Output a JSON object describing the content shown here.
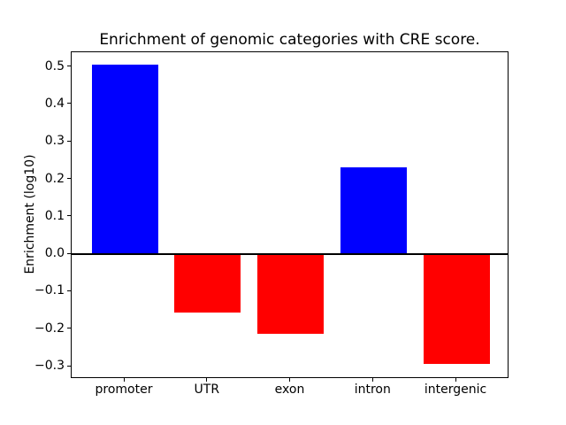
{
  "chart_data": {
    "type": "bar",
    "title": "Enrichment of genomic categories with CRE score.",
    "xlabel": "",
    "ylabel": "Enrichment (log10)",
    "categories": [
      "promoter",
      "UTR",
      "exon",
      "intron",
      "intergenic"
    ],
    "values": [
      0.505,
      -0.155,
      -0.213,
      0.232,
      -0.292
    ],
    "bar_colors": [
      "#0000ff",
      "#ff0000",
      "#ff0000",
      "#0000ff",
      "#ff0000"
    ],
    "positive_color": "#0000ff",
    "negative_color": "#ff0000",
    "yticks": [
      0.5,
      0.4,
      0.3,
      0.2,
      0.1,
      0.0,
      -0.1,
      -0.2,
      -0.3
    ],
    "ytick_labels": [
      "0.5",
      "0.4",
      "0.3",
      "0.2",
      "0.1",
      "0.0",
      "−0.1",
      "−0.2",
      "−0.3"
    ],
    "ylim": [
      -0.333,
      0.539
    ],
    "xlim": [
      -0.64,
      4.64
    ],
    "bar_width": 0.8,
    "zero_line": true,
    "grid": false,
    "legend": "none",
    "axis_color": "#000000",
    "background_color": "#ffffff"
  }
}
